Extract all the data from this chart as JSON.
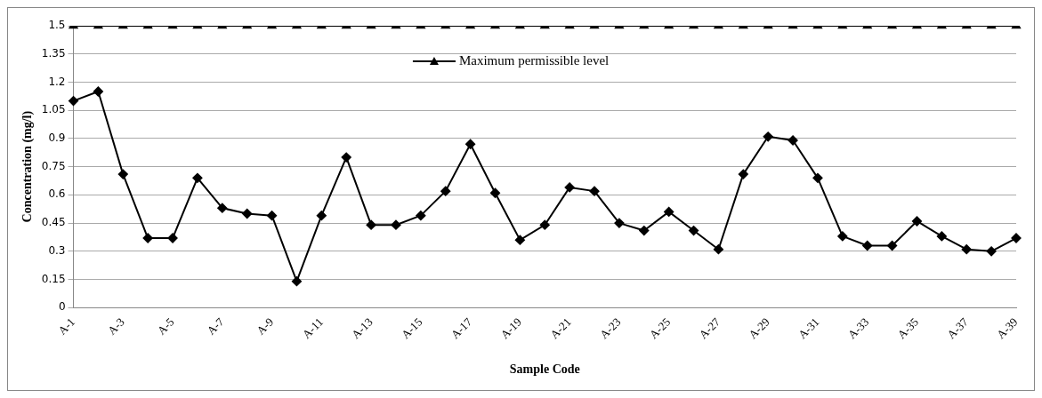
{
  "chart_data": {
    "type": "line",
    "xlabel": "Sample Code",
    "ylabel": "Concentration (mg/l)",
    "categories": [
      "A-1",
      null,
      "A-3",
      null,
      "A-5",
      null,
      "A-7",
      null,
      "A-9",
      null,
      "A-11",
      null,
      "A-13",
      null,
      "A-15",
      null,
      "A-17",
      null,
      "A-19",
      null,
      "A-21",
      null,
      "A-23",
      null,
      "A-25",
      null,
      "A-27",
      null,
      "A-29",
      null,
      "A-31",
      null,
      "A-33",
      null,
      "A-35",
      null,
      "A-37",
      null,
      "A-39"
    ],
    "series": [
      {
        "color": "#000000",
        "marker": "diamond",
        "values": [
          1.1,
          1.15,
          0.71,
          0.37,
          0.37,
          0.69,
          0.53,
          0.5,
          0.49,
          0.14,
          0.49,
          0.8,
          0.44,
          0.44,
          0.49,
          0.62,
          0.87,
          0.61,
          0.36,
          0.44,
          0.64,
          0.62,
          0.45,
          0.41,
          0.51,
          0.41,
          0.31,
          0.71,
          0.91,
          0.89,
          0.69,
          0.38,
          0.33,
          0.33,
          0.46,
          0.38,
          0.31,
          0.3,
          0.37
        ]
      },
      {
        "name": "Maximum permissible level",
        "color": "#000000",
        "marker": "triangle",
        "values": [
          1.5,
          1.5,
          1.5,
          1.5,
          1.5,
          1.5,
          1.5,
          1.5,
          1.5,
          1.5,
          1.5,
          1.5,
          1.5,
          1.5,
          1.5,
          1.5,
          1.5,
          1.5,
          1.5,
          1.5,
          1.5,
          1.5,
          1.5,
          1.5,
          1.5,
          1.5,
          1.5,
          1.5,
          1.5,
          1.5,
          1.5,
          1.5,
          1.5,
          1.5,
          1.5,
          1.5,
          1.5,
          1.5,
          1.5
        ]
      }
    ],
    "ylim": [
      0,
      1.5
    ],
    "yticks": [
      0,
      0.15,
      0.3,
      0.45,
      0.6,
      0.75,
      0.9,
      1.05,
      1.2,
      1.35,
      1.5
    ],
    "grid": "y",
    "legend": "top"
  }
}
